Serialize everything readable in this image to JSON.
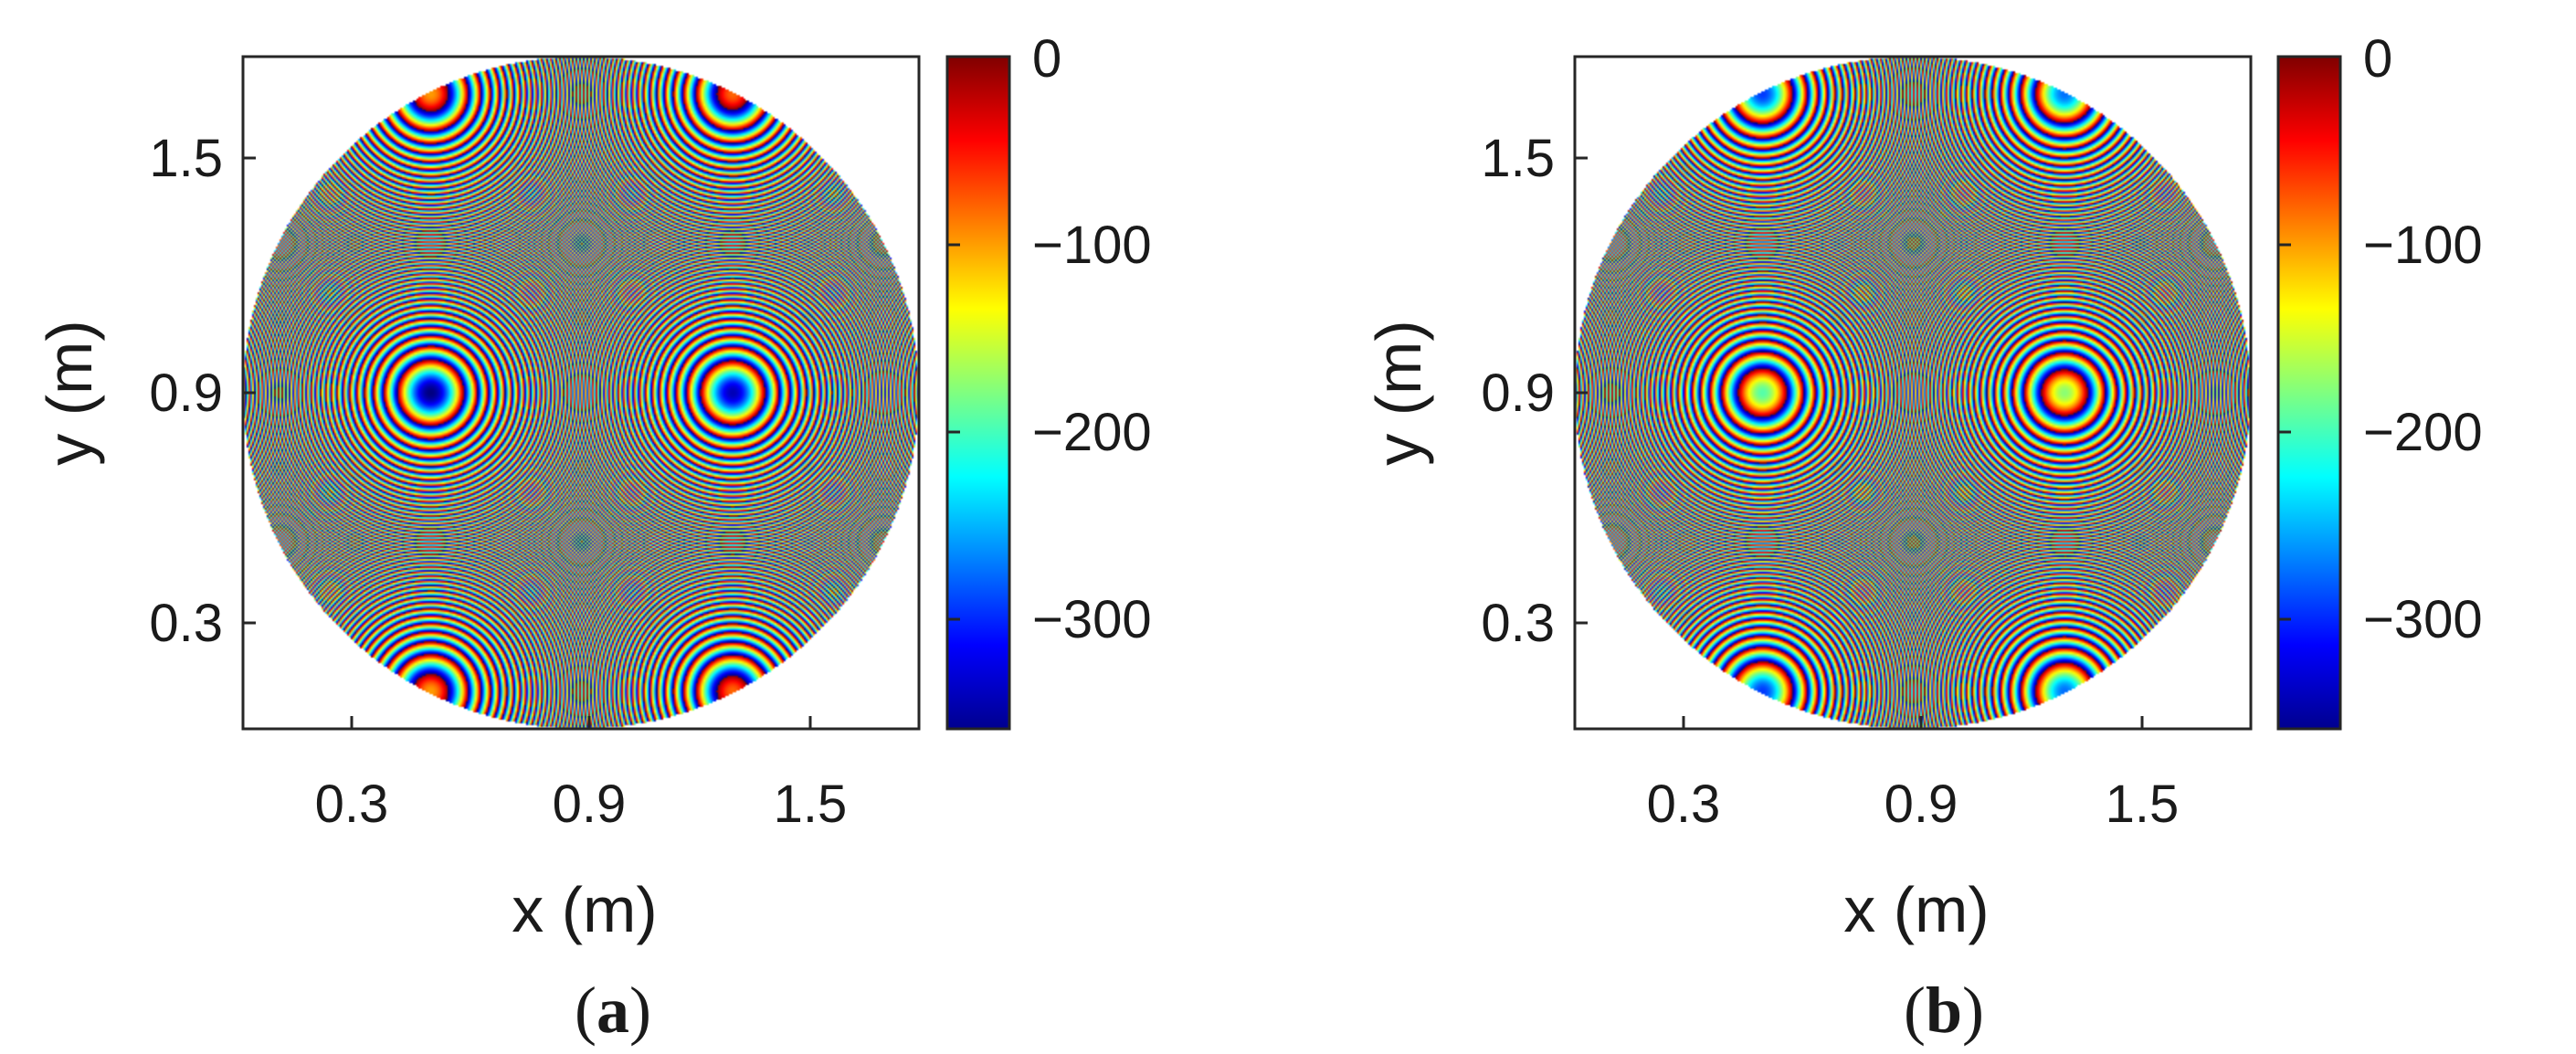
{
  "chart_data": [
    {
      "type": "heatmap",
      "panel_label": "a",
      "xlabel": "x (m)",
      "ylabel": "y (m)",
      "xlim": [
        0,
        1.8
      ],
      "ylim": [
        0,
        1.8
      ],
      "x_ticks": [
        "0.3",
        "0.9",
        "1.5"
      ],
      "y_ticks": [
        "1.5",
        "0.9",
        "0.3"
      ],
      "colorbar_ticks": [
        "0",
        "−100",
        "−200",
        "−300"
      ],
      "colorbar_range": [
        -360,
        0
      ],
      "colormap": "jet",
      "aperture": {
        "shape": "circle",
        "center": [
          0.9,
          0.9
        ],
        "radius": 0.9
      },
      "pattern": {
        "center": [
          0.5,
          0.9
        ],
        "center_value": -360,
        "wrap_period": 360
      }
    },
    {
      "type": "heatmap",
      "panel_label": "b",
      "xlabel": "x (m)",
      "ylabel": "y (m)",
      "xlim": [
        0,
        1.8
      ],
      "ylim": [
        0,
        1.8
      ],
      "x_ticks": [
        "0.3",
        "0.9",
        "1.5"
      ],
      "y_ticks": [
        "1.5",
        "0.9",
        "0.3"
      ],
      "colorbar_ticks": [
        "0",
        "−100",
        "−200",
        "−300"
      ],
      "colorbar_range": [
        -360,
        0
      ],
      "colormap": "jet",
      "aperture": {
        "shape": "circle",
        "center": [
          0.9,
          0.9
        ],
        "radius": 0.9
      },
      "pattern": {
        "center": [
          0.5,
          0.9
        ],
        "center_value": -195,
        "wrap_period": 360
      }
    }
  ]
}
